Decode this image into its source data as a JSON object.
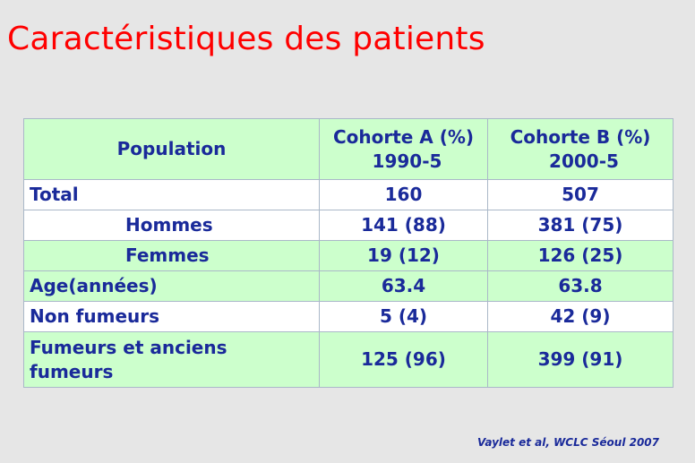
{
  "title": "Caractéristiques des patients",
  "table": {
    "header": {
      "population": "Population",
      "cohort_a_label": "Cohorte A (%)",
      "cohort_a_period": "1990-5",
      "cohort_b_label": "Cohorte B (%)",
      "cohort_b_period": "2000-5"
    },
    "rows": [
      {
        "label": "Total",
        "a": "160",
        "b": "507"
      },
      {
        "label": "Hommes",
        "a": "141 (88)",
        "b": "381 (75)"
      },
      {
        "label": "Femmes",
        "a": "19 (12)",
        "b": "126 (25)"
      },
      {
        "label": "Age(années)",
        "a": "63.4",
        "b": "63.8"
      },
      {
        "label": "Non fumeurs",
        "a": "5 (4)",
        "b": "42 (9)"
      },
      {
        "label_line1": "Fumeurs et anciens",
        "label_line2": "fumeurs",
        "a": "125 (96)",
        "b": "399 (91)"
      }
    ]
  },
  "citation": "Vaylet et al, WCLC Séoul 2007",
  "colors": {
    "title": "#ff0000",
    "text": "#1a2a9a",
    "row_green": "#ccffcc",
    "row_white": "#ffffff",
    "background": "#e6e6e6"
  }
}
